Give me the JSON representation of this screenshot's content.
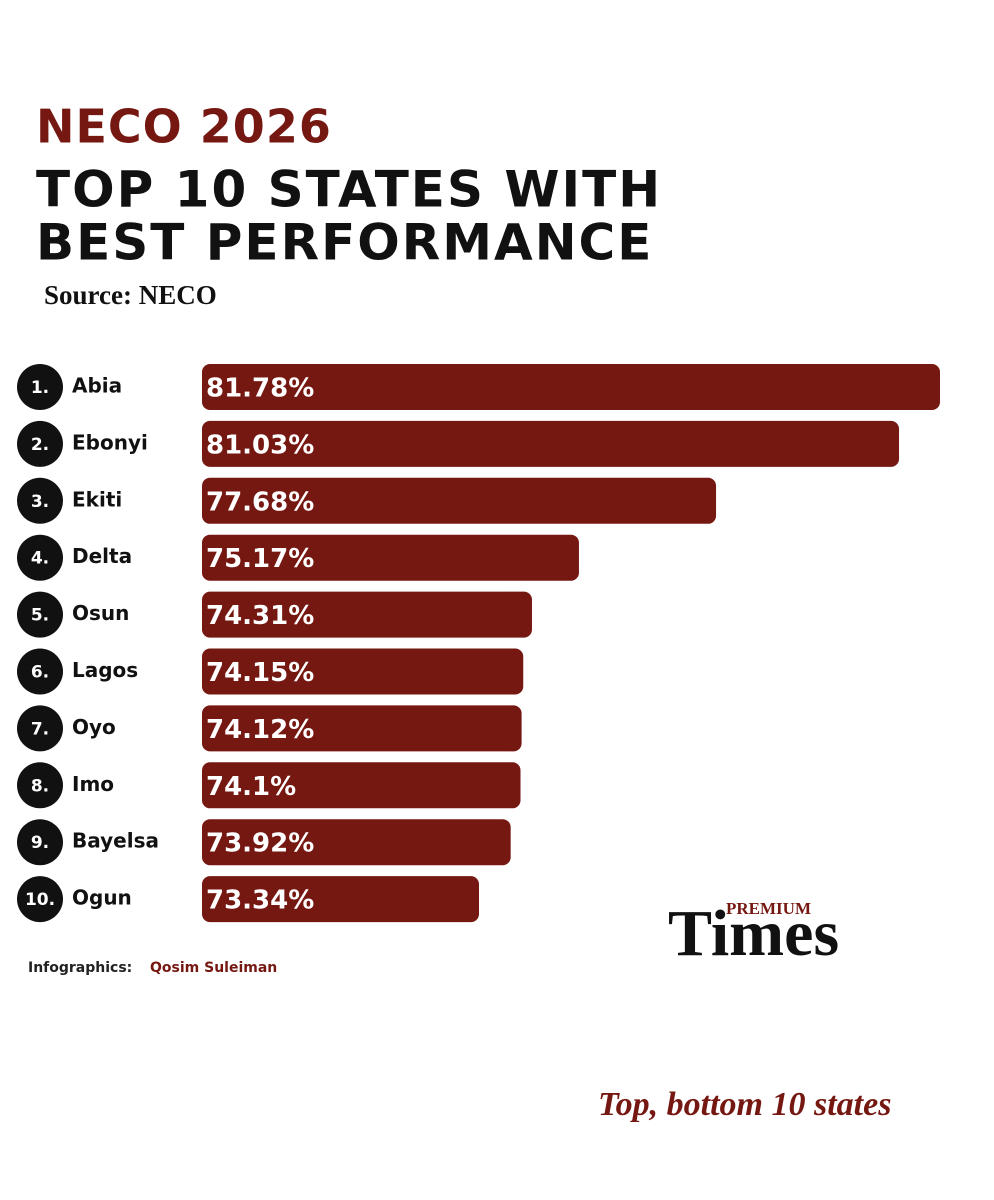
{
  "chart_data": {
    "type": "bar",
    "title": "NECO 2026",
    "subtitle_lines": [
      "TOP 10 STATES WITH",
      "BEST  PERFORMANCE"
    ],
    "source": "Source: NECO",
    "ranks": [
      "1.",
      "2.",
      "3.",
      "4.",
      "5.",
      "6.",
      "7.",
      "8.",
      "9.",
      "10."
    ],
    "categories": [
      "Abia",
      "Ebonyi",
      "Ekiti",
      "Delta",
      "Osun",
      "Lagos",
      "Oyo",
      "Imo",
      "Bayelsa",
      "Ogun"
    ],
    "values": [
      81.78,
      81.03,
      77.68,
      75.17,
      74.31,
      74.15,
      74.12,
      74.1,
      73.92,
      73.34
    ],
    "value_labels": [
      "81.78%",
      "81.03%",
      "77.68%",
      "75.17%",
      "74.31%",
      "74.15%",
      "74.12%",
      "74.1%",
      "73.92%",
      "73.34%"
    ],
    "color": "#761812",
    "credit_label": "Infographics:",
    "credit_name": "Qosim Suleiman",
    "logo_top": "PREMIUM",
    "logo_main": "Times",
    "caption": "Top, bottom 10 states"
  }
}
